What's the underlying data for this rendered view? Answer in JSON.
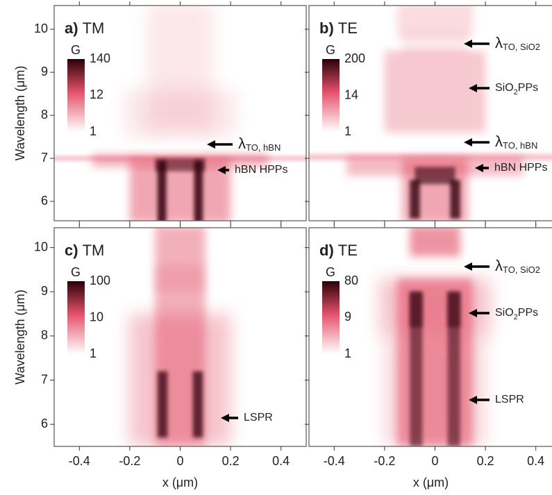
{
  "chart_data": [
    {
      "type": "heatmap",
      "label": "a)",
      "mode": "TM",
      "ylabel": "Wavelength (μm)",
      "xlim": [
        -0.5,
        0.5
      ],
      "ylim": [
        5.55,
        10.55
      ],
      "xticks": [
        -0.4,
        -0.2,
        0.0,
        0.2,
        0.4
      ],
      "yticks": [
        6,
        7,
        8,
        9,
        10
      ],
      "colorbar": {
        "title": "G",
        "log": true,
        "clim": [
          1,
          140
        ],
        "ticks": [
          1,
          12,
          140
        ]
      },
      "annotations": [
        {
          "text": "λ",
          "sub": "TO, hBN"
        },
        {
          "text": "hBN HPPs"
        }
      ]
    },
    {
      "type": "heatmap",
      "label": "b)",
      "mode": "TE",
      "xlim": [
        -0.5,
        0.5
      ],
      "ylim": [
        5.55,
        10.55
      ],
      "xticks": [
        -0.4,
        -0.2,
        0.0,
        0.2,
        0.4
      ],
      "yticks": [
        6,
        7,
        8,
        9,
        10
      ],
      "colorbar": {
        "title": "G",
        "log": true,
        "clim": [
          1,
          200
        ],
        "ticks": [
          1,
          14,
          200
        ]
      },
      "annotations": [
        {
          "text": "λ",
          "sub": "TO, SiO2"
        },
        {
          "text": "SiO",
          "sub": "2",
          "after": "PPs"
        },
        {
          "text": "λ",
          "sub": "TO, hBN"
        },
        {
          "text": "hBN HPPs"
        }
      ]
    },
    {
      "type": "heatmap",
      "label": "c)",
      "mode": "TM",
      "ylabel": "Wavelength (μm)",
      "xlabel": "x (μm)",
      "xlim": [
        -0.5,
        0.5
      ],
      "ylim": [
        5.5,
        10.45
      ],
      "xticks": [
        -0.4,
        -0.2,
        0.0,
        0.2,
        0.4
      ],
      "yticks": [
        6,
        7,
        8,
        9,
        10
      ],
      "colorbar": {
        "title": "G",
        "log": true,
        "clim": [
          1,
          100
        ],
        "ticks": [
          1,
          10,
          100
        ]
      },
      "annotations": [
        {
          "text": "LSPR"
        }
      ]
    },
    {
      "type": "heatmap",
      "label": "d)",
      "mode": "TE",
      "xlabel": "x (μm)",
      "xlim": [
        -0.5,
        0.5
      ],
      "ylim": [
        5.5,
        10.45
      ],
      "xticks": [
        -0.4,
        -0.2,
        0.0,
        0.2,
        0.4
      ],
      "yticks": [
        6,
        7,
        8,
        9,
        10
      ],
      "colorbar": {
        "title": "G",
        "log": true,
        "clim": [
          1,
          80
        ],
        "ticks": [
          1,
          9,
          80
        ]
      },
      "annotations": [
        {
          "text": "λ",
          "sub": "TO, SiO2"
        },
        {
          "text": "SiO",
          "sub": "2",
          "after": "PPs"
        },
        {
          "text": "LSPR"
        }
      ]
    }
  ]
}
